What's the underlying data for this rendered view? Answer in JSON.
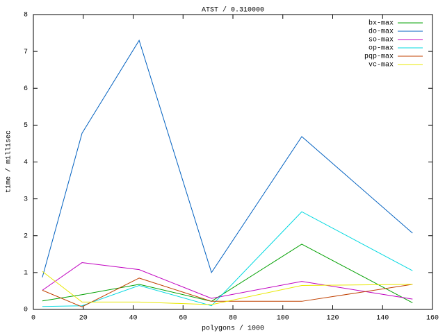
{
  "chart_data": {
    "type": "line",
    "title": "ATST / 0.310000",
    "x_label": "polygons / 1000",
    "y_label": "time / millisec",
    "x": [
      3.6,
      19.5,
      42.4,
      71.4,
      107.6,
      152
    ],
    "xlim": [
      0,
      160
    ],
    "xticks": [
      0,
      20,
      40,
      60,
      80,
      100,
      120,
      140,
      160
    ],
    "ylim": [
      0,
      8
    ],
    "yticks": [
      0,
      1,
      2,
      3,
      4,
      5,
      6,
      7,
      8
    ],
    "legend": "top-right",
    "series": [
      {
        "name": "bx-max",
        "color": "#00a000",
        "values": [
          0.23,
          0.4,
          0.68,
          0.22,
          1.77,
          0.18
        ]
      },
      {
        "name": "do-max",
        "color": "#0060c0",
        "values": [
          0.87,
          4.78,
          7.3,
          1.0,
          4.69,
          2.07
        ]
      },
      {
        "name": "so-max",
        "color": "#c000c0",
        "values": [
          0.52,
          1.27,
          1.08,
          0.3,
          0.76,
          0.28
        ]
      },
      {
        "name": "op-max",
        "color": "#00d8e0",
        "values": [
          0.08,
          0.1,
          0.65,
          0.1,
          2.65,
          1.05
        ]
      },
      {
        "name": "pqp-max",
        "color": "#c04000",
        "values": [
          0.52,
          0.07,
          0.85,
          0.22,
          0.22,
          0.68
        ]
      },
      {
        "name": "vc-max",
        "color": "#e8e800",
        "values": [
          1.03,
          0.2,
          0.2,
          0.13,
          0.65,
          0.68
        ]
      }
    ]
  }
}
